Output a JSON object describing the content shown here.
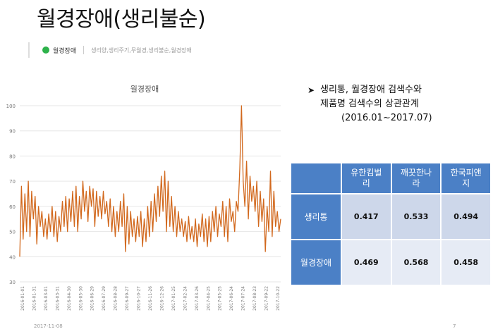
{
  "page": {
    "title": "월경장애(생리불순)",
    "legend_main": "월경장애",
    "legend_rest": "생리양,생리주기,무월경,생리불순,월경장애",
    "footer_left": "2017-11-08",
    "footer_right": "7"
  },
  "note": {
    "line1": "생리통, 월경장애 검색수와",
    "line2": "제품명 검색수의 상관관계",
    "line3": "(2016.01~2017.07)"
  },
  "table": {
    "columns": [
      "유한킴벌리",
      "깨끗한나라",
      "한국피앤지"
    ],
    "col_lines": [
      [
        "유한킴벌",
        "리"
      ],
      [
        "깨끗한나",
        "라"
      ],
      [
        "한국피앤",
        "지"
      ]
    ],
    "rows": [
      {
        "label": "생리통",
        "values": [
          "0.417",
          "0.533",
          "0.494"
        ]
      },
      {
        "label": "월경장애",
        "values": [
          "0.469",
          "0.568",
          "0.458"
        ]
      }
    ]
  },
  "colors": {
    "line": "#d2691e",
    "table_header": "#4b80c6",
    "table_cell": "#cdd7ea",
    "legend_dot": "#2db24b"
  },
  "chart_data": {
    "type": "line",
    "title": "월경장애",
    "ylim": [
      30,
      100
    ],
    "yticks": [
      30,
      40,
      50,
      60,
      70,
      80,
      90,
      100
    ],
    "xticklabels": [
      "2016-01-01",
      "2016-01-31",
      "2016-03-01",
      "2016-03-31",
      "2016-04-30",
      "2016-05-30",
      "2016-06-29",
      "2016-07-29",
      "2016-08-28",
      "2016-09-27",
      "2016-10-27",
      "2016-11-26",
      "2016-12-26",
      "2017-01-25",
      "2017-02-24",
      "2017-03-26",
      "2017-04-25",
      "2017-05-25",
      "2017-06-24",
      "2017-07-24",
      "2017-08-23",
      "2017-09-22",
      "2017-10-22"
    ],
    "series": [
      {
        "values": [
          40,
          68,
          47,
          65,
          50,
          70,
          48,
          66,
          55,
          64,
          45,
          60,
          52,
          58,
          48,
          55,
          47,
          57,
          50,
          60,
          48,
          58,
          46,
          56,
          50,
          62,
          52,
          64,
          50,
          63,
          54,
          66,
          52,
          68,
          50,
          64,
          55,
          70,
          58,
          66,
          54,
          68,
          60,
          67,
          52,
          66,
          56,
          64,
          55,
          66,
          57,
          62,
          52,
          63,
          50,
          60,
          48,
          58,
          50,
          62,
          52,
          65,
          42,
          60,
          45,
          58,
          48,
          55,
          46,
          56,
          48,
          58,
          44,
          55,
          46,
          60,
          48,
          62,
          50,
          65,
          54,
          68,
          56,
          72,
          58,
          74,
          50,
          70,
          52,
          64,
          50,
          60,
          48,
          58,
          50,
          55,
          48,
          54,
          46,
          56,
          47,
          52,
          46,
          55,
          44,
          53,
          48,
          57,
          46,
          55,
          44,
          56,
          46,
          58,
          50,
          60,
          48,
          57,
          52,
          62,
          48,
          60,
          46,
          63,
          54,
          58,
          50,
          62,
          58,
          75,
          100,
          70,
          60,
          78,
          55,
          72,
          62,
          68,
          58,
          70,
          52,
          66,
          54,
          63,
          42,
          60,
          50,
          74,
          48,
          66,
          52,
          58,
          50,
          55
        ]
      }
    ]
  }
}
